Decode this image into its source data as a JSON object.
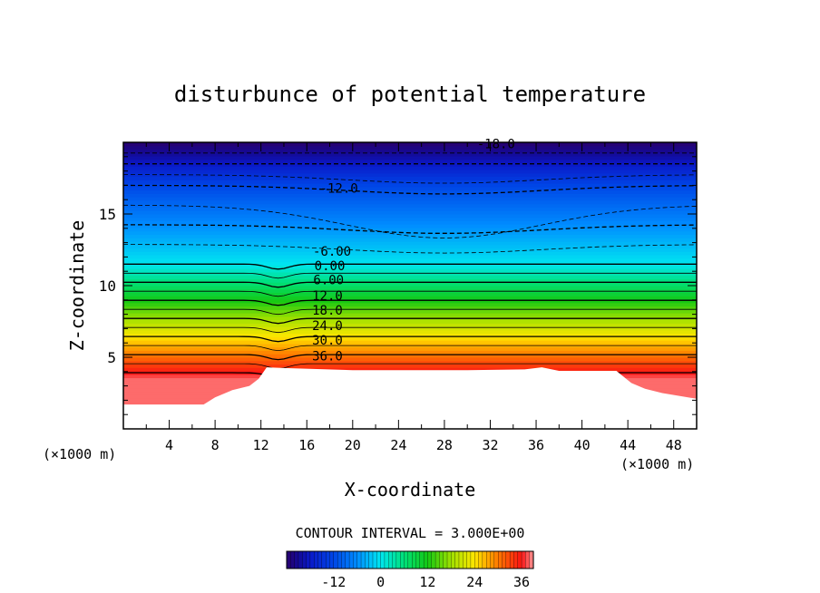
{
  "chart_data": {
    "type": "heatmap",
    "title": "disturbunce of potential temperature",
    "xlabel": "X-coordinate",
    "ylabel": "Z-coordinate",
    "x_unit_left": "(×1000 m)",
    "x_unit_right": "(×1000 m)",
    "xlim": [
      0,
      50
    ],
    "ylim": [
      0,
      20
    ],
    "x_ticks": [
      4,
      8,
      12,
      16,
      20,
      24,
      28,
      32,
      36,
      40,
      44,
      48
    ],
    "y_ticks": [
      5,
      10,
      15
    ],
    "contour_interval_text": "CONTOUR INTERVAL = 3.000E+00",
    "colorbar": {
      "range": [
        -24,
        39
      ],
      "ticks": [
        -12,
        0,
        12,
        24,
        36
      ]
    },
    "contour_labels": [
      {
        "text": "-18.0",
        "x": 32.5,
        "z": 19.9
      },
      {
        "text": "-12.0",
        "x": 18.8,
        "z": 16.8
      },
      {
        "text": "-6.00",
        "x": 18.2,
        "z": 12.4
      },
      {
        "text": "0.00",
        "x": 18.0,
        "z": 11.4
      },
      {
        "text": "6.00",
        "x": 17.9,
        "z": 10.4
      },
      {
        "text": "12.0",
        "x": 17.8,
        "z": 9.3
      },
      {
        "text": "18.0",
        "x": 17.8,
        "z": 8.3
      },
      {
        "text": "24.0",
        "x": 17.8,
        "z": 7.2
      },
      {
        "text": "30.0",
        "x": 17.8,
        "z": 6.2
      },
      {
        "text": "36.0",
        "x": 17.8,
        "z": 5.1
      }
    ],
    "terrain": [
      [
        0,
        1.7
      ],
      [
        7,
        1.7
      ],
      [
        8,
        2.2
      ],
      [
        9.5,
        2.7
      ],
      [
        11,
        3.0
      ],
      [
        11.8,
        3.5
      ],
      [
        12.5,
        4.3
      ],
      [
        14,
        4.25
      ],
      [
        20,
        4.1
      ],
      [
        30,
        4.1
      ],
      [
        35,
        4.15
      ],
      [
        36.5,
        4.3
      ],
      [
        38,
        4.05
      ],
      [
        43,
        4.05
      ],
      [
        44.3,
        3.2
      ],
      [
        45.5,
        2.8
      ],
      [
        47,
        2.5
      ],
      [
        50,
        2.1
      ]
    ],
    "grid": false,
    "legend": "colorbar-bottom"
  }
}
